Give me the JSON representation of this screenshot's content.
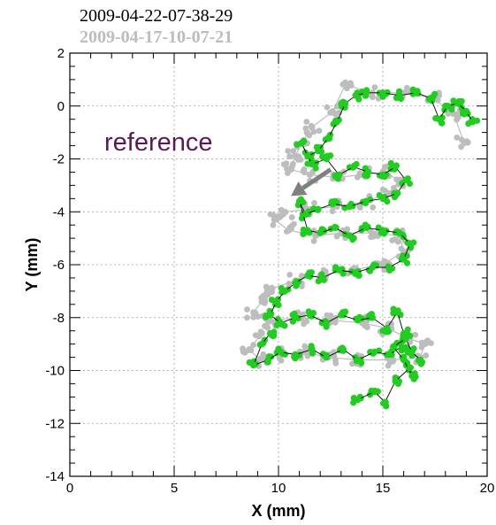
{
  "chart_data": {
    "type": "scatter",
    "title": "2009-04-22-07-38-29",
    "subtitle": "2009-04-17-10-07-21",
    "xlabel": "X (mm)",
    "ylabel": "Y (mm)",
    "xlim": [
      0,
      20
    ],
    "ylim": [
      -14,
      2
    ],
    "xticks": [
      0,
      5,
      10,
      15,
      20
    ],
    "yticks": [
      -14,
      -12,
      -10,
      -8,
      -6,
      -4,
      -2,
      0,
      2
    ],
    "grid": true,
    "annotation": {
      "text": "reference",
      "arrow_from": [
        12.5,
        -2.4
      ],
      "arrow_to": [
        10.6,
        -3.4
      ]
    },
    "colors": {
      "current": "#22cc22",
      "reference": "#bdbdbd",
      "link": "#000000",
      "annotation": "#5a1a5a",
      "arrow": "#808080"
    },
    "series": [
      {
        "role": "reference",
        "style": "gray dots joined by gray lines",
        "path": [
          [
            18.9,
            -1.4
          ],
          [
            18.4,
            -0.3
          ],
          [
            17.4,
            0.3
          ],
          [
            16.0,
            0.5
          ],
          [
            14.5,
            0.5
          ],
          [
            13.2,
            0.8
          ],
          [
            12.6,
            -0.2
          ],
          [
            11.6,
            -0.8
          ],
          [
            11.2,
            -1.3
          ],
          [
            10.8,
            -1.9
          ],
          [
            10.6,
            -2.4
          ],
          [
            11.5,
            -2.6
          ],
          [
            12.8,
            -2.7
          ],
          [
            14.0,
            -2.6
          ],
          [
            15.0,
            -2.5
          ],
          [
            15.8,
            -2.8
          ],
          [
            15.3,
            -3.3
          ],
          [
            14.2,
            -3.6
          ],
          [
            12.8,
            -3.8
          ],
          [
            11.5,
            -3.9
          ],
          [
            10.3,
            -4.0
          ],
          [
            9.8,
            -4.3
          ],
          [
            10.5,
            -4.7
          ],
          [
            11.8,
            -4.9
          ],
          [
            13.0,
            -4.8
          ],
          [
            14.5,
            -4.8
          ],
          [
            15.8,
            -4.9
          ],
          [
            16.0,
            -5.5
          ],
          [
            15.0,
            -6.0
          ],
          [
            13.5,
            -6.2
          ],
          [
            12.0,
            -6.4
          ],
          [
            10.8,
            -6.6
          ],
          [
            9.7,
            -6.9
          ],
          [
            9.2,
            -7.4
          ],
          [
            8.8,
            -7.8
          ],
          [
            9.6,
            -8.1
          ],
          [
            11.0,
            -8.0
          ],
          [
            12.5,
            -8.1
          ],
          [
            14.0,
            -8.2
          ],
          [
            15.2,
            -8.4
          ],
          [
            16.3,
            -8.8
          ],
          [
            17.0,
            -9.0
          ],
          [
            16.8,
            -9.5
          ],
          [
            15.5,
            -9.6
          ],
          [
            13.8,
            -9.6
          ],
          [
            12.4,
            -9.5
          ],
          [
            11.2,
            -9.3
          ],
          [
            10.0,
            -9.4
          ],
          [
            9.1,
            -9.6
          ],
          [
            8.6,
            -9.2
          ],
          [
            9.2,
            -8.6
          ]
        ]
      },
      {
        "role": "current",
        "style": "green dots joined by thin black lines",
        "path": [
          [
            19.3,
            -0.6
          ],
          [
            19.0,
            -0.2
          ],
          [
            18.6,
            0.1
          ],
          [
            18.1,
            0.0
          ],
          [
            17.7,
            -0.5
          ],
          [
            17.3,
            0.3
          ],
          [
            16.6,
            0.5
          ],
          [
            15.8,
            0.4
          ],
          [
            15.0,
            0.5
          ],
          [
            14.2,
            0.5
          ],
          [
            13.7,
            0.4
          ],
          [
            13.2,
            0.1
          ],
          [
            12.8,
            -0.6
          ],
          [
            12.4,
            -1.2
          ],
          [
            11.9,
            -1.7
          ],
          [
            11.4,
            -1.9
          ],
          [
            11.1,
            -1.4
          ],
          [
            11.6,
            -2.2
          ],
          [
            12.3,
            -2.0
          ],
          [
            12.9,
            -2.6
          ],
          [
            13.6,
            -2.3
          ],
          [
            14.3,
            -2.5
          ],
          [
            15.0,
            -2.6
          ],
          [
            15.6,
            -2.3
          ],
          [
            16.1,
            -2.8
          ],
          [
            15.7,
            -3.3
          ],
          [
            15.0,
            -3.5
          ],
          [
            14.2,
            -3.6
          ],
          [
            13.4,
            -3.8
          ],
          [
            12.6,
            -3.7
          ],
          [
            11.9,
            -3.9
          ],
          [
            11.3,
            -4.1
          ],
          [
            11.0,
            -3.6
          ],
          [
            11.4,
            -4.7
          ],
          [
            12.0,
            -4.8
          ],
          [
            12.7,
            -4.6
          ],
          [
            13.4,
            -4.9
          ],
          [
            14.2,
            -4.6
          ],
          [
            15.0,
            -4.7
          ],
          [
            15.8,
            -4.8
          ],
          [
            16.3,
            -5.2
          ],
          [
            16.0,
            -5.8
          ],
          [
            15.3,
            -6.1
          ],
          [
            14.5,
            -6.1
          ],
          [
            13.7,
            -6.3
          ],
          [
            12.9,
            -6.2
          ],
          [
            12.1,
            -6.5
          ],
          [
            11.4,
            -6.4
          ],
          [
            10.8,
            -6.7
          ],
          [
            10.3,
            -7.0
          ],
          [
            9.9,
            -7.4
          ],
          [
            9.6,
            -7.9
          ],
          [
            10.1,
            -8.2
          ],
          [
            10.8,
            -8.0
          ],
          [
            11.5,
            -7.9
          ],
          [
            12.3,
            -8.2
          ],
          [
            13.0,
            -7.9
          ],
          [
            13.8,
            -8.1
          ],
          [
            14.5,
            -8.0
          ],
          [
            15.2,
            -8.4
          ],
          [
            15.7,
            -7.8
          ],
          [
            16.0,
            -8.6
          ],
          [
            15.9,
            -9.1
          ],
          [
            15.3,
            -9.4
          ],
          [
            14.6,
            -9.3
          ],
          [
            13.8,
            -9.6
          ],
          [
            13.1,
            -9.2
          ],
          [
            12.3,
            -9.5
          ],
          [
            11.6,
            -9.2
          ],
          [
            10.8,
            -9.4
          ],
          [
            10.1,
            -9.3
          ],
          [
            9.5,
            -9.6
          ],
          [
            8.8,
            -9.8
          ],
          [
            9.2,
            -9.0
          ],
          [
            9.6,
            -8.6
          ]
        ]
      },
      {
        "role": "current",
        "style": "green dots joined by thin black lines",
        "path": [
          [
            13.8,
            -11.1
          ],
          [
            14.6,
            -10.8
          ],
          [
            15.1,
            -11.2
          ],
          [
            15.6,
            -10.4
          ],
          [
            16.3,
            -9.9
          ],
          [
            16.4,
            -10.2
          ],
          [
            16.0,
            -9.6
          ],
          [
            15.5,
            -9.1
          ],
          [
            16.1,
            -8.8
          ],
          [
            16.4,
            -9.3
          ],
          [
            16.8,
            -9.6
          ]
        ]
      }
    ]
  }
}
